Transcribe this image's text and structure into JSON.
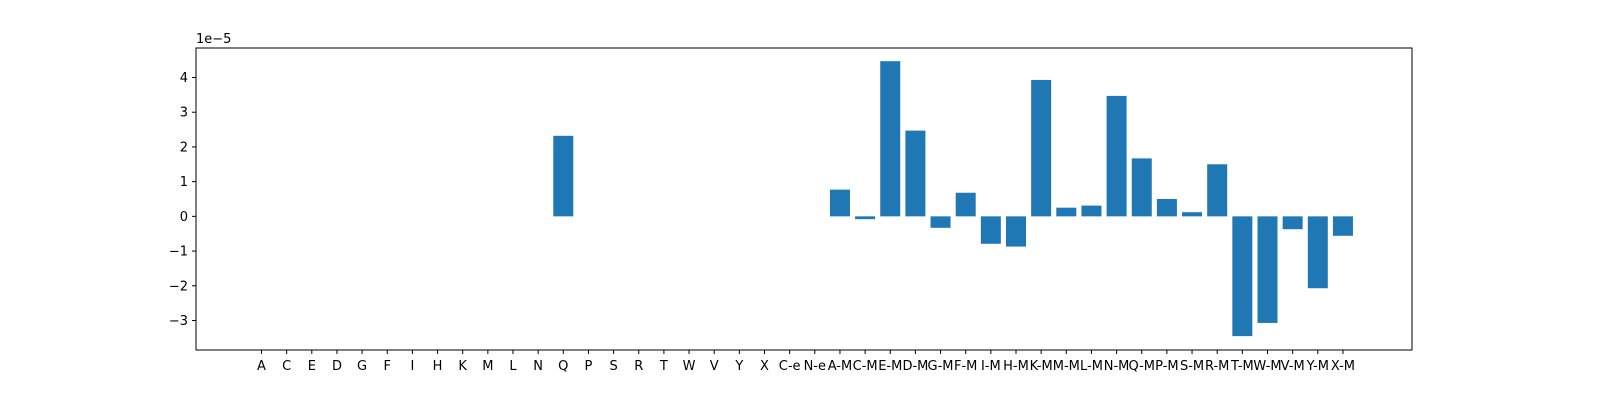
{
  "chart_data": {
    "type": "bar",
    "title": "",
    "xlabel": "",
    "ylabel": "",
    "y_offset_label": "1e−5",
    "y_scale": 1e-05,
    "ylim": [
      -3.85,
      4.85
    ],
    "yticks": [
      -3,
      -2,
      -1,
      0,
      1,
      2,
      3,
      4
    ],
    "ytick_labels": [
      "−3",
      "−2",
      "−1",
      "0",
      "1",
      "2",
      "3",
      "4"
    ],
    "grid": false,
    "bar_color": "#1f77b4",
    "categories": [
      "A",
      "C",
      "E",
      "D",
      "G",
      "F",
      "I",
      "H",
      "K",
      "M",
      "L",
      "N",
      "Q",
      "P",
      "S",
      "R",
      "T",
      "W",
      "V",
      "Y",
      "X",
      "C-e",
      "N-e",
      "A-M",
      "C-M",
      "E-M",
      "D-M",
      "G-M",
      "F-M",
      "I-M",
      "H-M",
      "K-M",
      "M-M",
      "L-M",
      "N-M",
      "Q-M",
      "P-M",
      "S-M",
      "R-M",
      "T-M",
      "W-M",
      "V-M",
      "Y-M",
      "X-M"
    ],
    "values": [
      0,
      0,
      0,
      0,
      0,
      0,
      0,
      0,
      0,
      0,
      0,
      0,
      2.32,
      0,
      0,
      0,
      0,
      0,
      0,
      0,
      0,
      0,
      0,
      0.77,
      -0.08,
      4.47,
      2.47,
      -0.33,
      0.68,
      -0.79,
      -0.87,
      3.93,
      0.25,
      0.31,
      3.47,
      1.67,
      0.5,
      0.12,
      1.5,
      -3.45,
      -3.07,
      -0.37,
      -2.07,
      -0.56
    ]
  }
}
